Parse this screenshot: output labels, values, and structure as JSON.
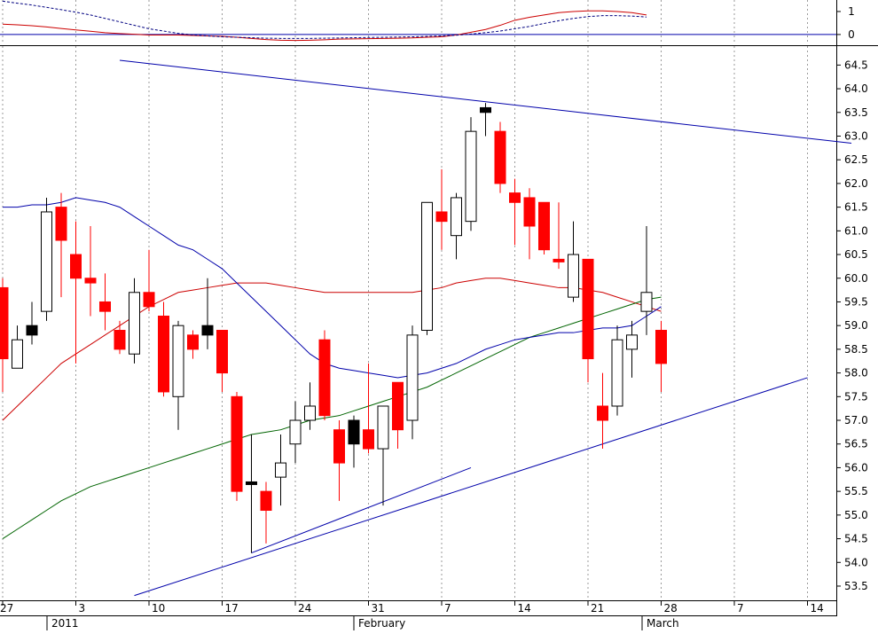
{
  "chart_data": [
    {
      "panel": "oscillator",
      "type": "line",
      "ylim": [
        -0.35,
        1.5
      ],
      "y_ticks": [
        "1",
        "0"
      ],
      "x": [
        "Dec 27",
        "Dec 28",
        "Dec 29",
        "Dec 30",
        "Dec 31",
        "Jan 3",
        "Jan 4",
        "Jan 5",
        "Jan 6",
        "Jan 7",
        "Jan 10",
        "Jan 11",
        "Jan 12",
        "Jan 13",
        "Jan 14",
        "Jan 17",
        "Jan 18",
        "Jan 19",
        "Jan 20",
        "Jan 21",
        "Jan 24",
        "Jan 25",
        "Jan 26",
        "Jan 27",
        "Jan 28",
        "Jan 31",
        "Feb 1",
        "Feb 2",
        "Feb 3",
        "Feb 4",
        "Feb 7",
        "Feb 8",
        "Feb 9",
        "Feb 10",
        "Feb 11",
        "Feb 14",
        "Feb 15",
        "Feb 16",
        "Feb 17",
        "Feb 18",
        "Feb 21",
        "Feb 22",
        "Feb 23",
        "Feb 24",
        "Feb 25",
        "Feb 28",
        "Mar 1",
        "Mar 2"
      ],
      "series": [
        {
          "style": "solid",
          "color": "#cc0000",
          "values": [
            0.45,
            0.42,
            0.38,
            0.33,
            0.26,
            0.2,
            0.14,
            0.08,
            0.04,
            0.01,
            -0.02,
            -0.02,
            -0.02,
            -0.04,
            -0.06,
            -0.08,
            -0.12,
            -0.17,
            -0.22,
            -0.25,
            -0.26,
            -0.25,
            -0.23,
            -0.2,
            -0.19,
            -0.18,
            -0.17,
            -0.16,
            -0.15,
            -0.12,
            -0.1,
            -0.02,
            0.1,
            0.22,
            0.4,
            0.62,
            0.75,
            0.85,
            0.95,
            1.0,
            1.03,
            1.03,
            1.0,
            0.95,
            0.85,
            0.7,
            0.5,
            0.3
          ]
        },
        {
          "style": "dotted",
          "color": "#000080",
          "values": [
            1.45,
            1.36,
            1.28,
            1.18,
            1.08,
            0.97,
            0.85,
            0.7,
            0.55,
            0.4,
            0.25,
            0.15,
            0.05,
            -0.02,
            -0.06,
            -0.1,
            -0.12,
            -0.14,
            -0.16,
            -0.17,
            -0.17,
            -0.17,
            -0.16,
            -0.15,
            -0.14,
            -0.13,
            -0.12,
            -0.11,
            -0.1,
            -0.08,
            -0.06,
            -0.03,
            0.02,
            0.08,
            0.15,
            0.25,
            0.35,
            0.48,
            0.6,
            0.7,
            0.78,
            0.82,
            0.82,
            0.8,
            0.76,
            0.7,
            0.6,
            0.48
          ]
        }
      ]
    },
    {
      "panel": "price",
      "type": "candlestick",
      "ylim": [
        53.2,
        64.9
      ],
      "y_ticks": [
        "53.5",
        "54.0",
        "54.5",
        "55.0",
        "55.5",
        "56.0",
        "56.5",
        "57.0",
        "57.5",
        "58.0",
        "58.5",
        "59.0",
        "59.5",
        "60.0",
        "60.5",
        "61.0",
        "61.5",
        "62.0",
        "62.5",
        "63.0",
        "63.5",
        "64.0",
        "64.5"
      ],
      "x_tick_labels": [
        "27",
        "3",
        "10",
        "17",
        "24",
        "31",
        "7",
        "14",
        "21",
        "28",
        "7",
        "14"
      ],
      "period_labels": [
        "2011",
        "February",
        "March"
      ],
      "candles": [
        {
          "d": "Dec 27",
          "o": 59.8,
          "h": 60.0,
          "l": 57.6,
          "c": 58.3,
          "color": "red"
        },
        {
          "d": "Dec 28",
          "o": 58.1,
          "h": 59.0,
          "l": 58.1,
          "c": 58.7,
          "color": "white"
        },
        {
          "d": "Dec 29",
          "o": 59.0,
          "h": 59.5,
          "l": 58.6,
          "c": 58.8,
          "color": "black"
        },
        {
          "d": "Dec 30",
          "o": 59.3,
          "h": 61.7,
          "l": 59.1,
          "c": 61.4,
          "color": "white"
        },
        {
          "d": "Dec 31",
          "o": 61.5,
          "h": 61.8,
          "l": 59.6,
          "c": 60.8,
          "color": "red"
        },
        {
          "d": "Jan 3",
          "o": 60.5,
          "h": 61.2,
          "l": 58.2,
          "c": 60.0,
          "color": "red"
        },
        {
          "d": "Jan 4",
          "o": 60.0,
          "h": 61.1,
          "l": 59.2,
          "c": 59.9,
          "color": "red"
        },
        {
          "d": "Jan 5",
          "o": 59.5,
          "h": 60.1,
          "l": 58.9,
          "c": 59.3,
          "color": "red"
        },
        {
          "d": "Jan 6",
          "o": 58.9,
          "h": 59.1,
          "l": 58.4,
          "c": 58.5,
          "color": "red"
        },
        {
          "d": "Jan 7",
          "o": 58.4,
          "h": 60.0,
          "l": 58.2,
          "c": 59.7,
          "color": "white"
        },
        {
          "d": "Jan 10",
          "o": 59.7,
          "h": 60.6,
          "l": 59.3,
          "c": 59.4,
          "color": "red"
        },
        {
          "d": "Jan 11",
          "o": 59.2,
          "h": 59.5,
          "l": 57.5,
          "c": 57.6,
          "color": "red"
        },
        {
          "d": "Jan 12",
          "o": 57.5,
          "h": 59.1,
          "l": 56.8,
          "c": 59.0,
          "color": "white"
        },
        {
          "d": "Jan 13",
          "o": 58.8,
          "h": 58.9,
          "l": 58.3,
          "c": 58.5,
          "color": "red"
        },
        {
          "d": "Jan 14",
          "o": 59.0,
          "h": 60.0,
          "l": 58.5,
          "c": 58.8,
          "color": "black"
        },
        {
          "d": "Jan 17",
          "o": 58.9,
          "h": 58.9,
          "l": 57.6,
          "c": 58.0,
          "color": "red"
        },
        {
          "d": "Jan 18",
          "o": 57.5,
          "h": 57.6,
          "l": 55.3,
          "c": 55.5,
          "color": "red"
        },
        {
          "d": "Jan 19",
          "o": 55.7,
          "h": 56.7,
          "l": 54.2,
          "c": 55.7,
          "color": "black"
        },
        {
          "d": "Jan 20",
          "o": 55.5,
          "h": 55.7,
          "l": 54.4,
          "c": 55.1,
          "color": "red"
        },
        {
          "d": "Jan 21",
          "o": 55.8,
          "h": 56.7,
          "l": 55.2,
          "c": 56.1,
          "color": "white"
        },
        {
          "d": "Jan 24",
          "o": 56.5,
          "h": 57.4,
          "l": 56.1,
          "c": 57.0,
          "color": "white"
        },
        {
          "d": "Jan 25",
          "o": 57.0,
          "h": 57.8,
          "l": 56.8,
          "c": 57.3,
          "color": "white"
        },
        {
          "d": "Jan 26",
          "o": 58.7,
          "h": 58.9,
          "l": 57.0,
          "c": 57.1,
          "color": "red"
        },
        {
          "d": "Jan 27",
          "o": 56.8,
          "h": 57.0,
          "l": 55.3,
          "c": 56.1,
          "color": "red"
        },
        {
          "d": "Jan 28",
          "o": 57.0,
          "h": 57.1,
          "l": 56.0,
          "c": 56.5,
          "color": "black"
        },
        {
          "d": "Jan 31",
          "o": 56.8,
          "h": 58.2,
          "l": 56.3,
          "c": 56.4,
          "color": "red"
        },
        {
          "d": "Feb 1",
          "o": 56.4,
          "h": 57.3,
          "l": 55.2,
          "c": 57.3,
          "color": "white"
        },
        {
          "d": "Feb 2",
          "o": 57.8,
          "h": 57.8,
          "l": 56.4,
          "c": 56.8,
          "color": "red"
        },
        {
          "d": "Feb 3",
          "o": 57.0,
          "h": 59.0,
          "l": 56.6,
          "c": 58.8,
          "color": "white"
        },
        {
          "d": "Feb 4",
          "o": 58.9,
          "h": 61.6,
          "l": 58.8,
          "c": 61.6,
          "color": "white"
        },
        {
          "d": "Feb 7",
          "o": 61.4,
          "h": 62.3,
          "l": 60.6,
          "c": 61.2,
          "color": "red"
        },
        {
          "d": "Feb 8",
          "o": 60.9,
          "h": 61.8,
          "l": 60.4,
          "c": 61.7,
          "color": "white"
        },
        {
          "d": "Feb 9",
          "o": 61.2,
          "h": 63.4,
          "l": 61.0,
          "c": 63.1,
          "color": "white"
        },
        {
          "d": "Feb 10",
          "o": 63.6,
          "h": 63.7,
          "l": 63.0,
          "c": 63.5,
          "color": "black"
        },
        {
          "d": "Feb 11",
          "o": 63.1,
          "h": 63.3,
          "l": 61.8,
          "c": 62.0,
          "color": "red"
        },
        {
          "d": "Feb 14",
          "o": 61.8,
          "h": 62.1,
          "l": 60.7,
          "c": 61.6,
          "color": "red"
        },
        {
          "d": "Feb 15",
          "o": 61.7,
          "h": 61.9,
          "l": 60.4,
          "c": 61.1,
          "color": "red"
        },
        {
          "d": "Feb 16",
          "o": 61.6,
          "h": 61.6,
          "l": 60.5,
          "c": 60.6,
          "color": "red"
        },
        {
          "d": "Feb 17",
          "o": 60.4,
          "h": 61.6,
          "l": 60.2,
          "c": 60.4,
          "color": "red"
        },
        {
          "d": "Feb 18",
          "o": 59.6,
          "h": 61.2,
          "l": 59.5,
          "c": 60.5,
          "color": "white"
        },
        {
          "d": "Feb 21",
          "o": 60.4,
          "h": 60.4,
          "l": 57.8,
          "c": 58.3,
          "color": "red"
        },
        {
          "d": "Feb 22",
          "o": 57.3,
          "h": 58.0,
          "l": 56.4,
          "c": 57.0,
          "color": "red"
        },
        {
          "d": "Feb 23",
          "o": 57.3,
          "h": 59.0,
          "l": 57.1,
          "c": 58.7,
          "color": "white"
        },
        {
          "d": "Feb 24",
          "o": 58.5,
          "h": 59.1,
          "l": 57.9,
          "c": 58.8,
          "color": "white"
        },
        {
          "d": "Feb 25",
          "o": 59.3,
          "h": 61.1,
          "l": 58.8,
          "c": 59.7,
          "color": "white"
        },
        {
          "d": "Feb 28",
          "o": 58.9,
          "h": 59.1,
          "l": 57.6,
          "c": 58.2,
          "color": "red"
        }
      ],
      "overlays": [
        {
          "name_shown": false,
          "color": "#cc0000",
          "values": [
            57.0,
            57.3,
            57.6,
            57.9,
            58.2,
            58.4,
            58.6,
            58.8,
            59.0,
            59.2,
            59.4,
            59.55,
            59.7,
            59.75,
            59.8,
            59.85,
            59.9,
            59.9,
            59.9,
            59.85,
            59.8,
            59.75,
            59.7,
            59.7,
            59.7,
            59.7,
            59.7,
            59.7,
            59.7,
            59.75,
            59.8,
            59.9,
            59.95,
            60.0,
            60.0,
            59.95,
            59.9,
            59.85,
            59.8,
            59.8,
            59.75,
            59.7,
            59.6,
            59.5,
            59.4,
            59.3
          ]
        },
        {
          "name_shown": false,
          "color": "#006400",
          "values": [
            54.5,
            54.7,
            54.9,
            55.1,
            55.3,
            55.45,
            55.6,
            55.7,
            55.8,
            55.9,
            56.0,
            56.1,
            56.2,
            56.3,
            56.4,
            56.5,
            56.6,
            56.7,
            56.75,
            56.8,
            56.9,
            57.0,
            57.05,
            57.1,
            57.2,
            57.3,
            57.4,
            57.5,
            57.6,
            57.7,
            57.85,
            58.0,
            58.15,
            58.3,
            58.45,
            58.6,
            58.75,
            58.85,
            58.95,
            59.05,
            59.15,
            59.25,
            59.35,
            59.45,
            59.55,
            59.6
          ]
        },
        {
          "name_shown": false,
          "color": "#0000aa",
          "values": [
            61.5,
            61.5,
            61.55,
            61.55,
            61.6,
            61.7,
            61.65,
            61.6,
            61.5,
            61.3,
            61.1,
            60.9,
            60.7,
            60.6,
            60.4,
            60.2,
            59.9,
            59.6,
            59.3,
            59.0,
            58.7,
            58.4,
            58.2,
            58.1,
            58.05,
            58.0,
            57.95,
            57.9,
            57.95,
            58.0,
            58.1,
            58.2,
            58.35,
            58.5,
            58.6,
            58.7,
            58.75,
            58.8,
            58.85,
            58.85,
            58.9,
            58.95,
            58.95,
            59.0,
            59.2,
            59.4
          ]
        }
      ],
      "trendlines": [
        {
          "color": "#0000aa",
          "from": {
            "d": "Jan 6",
            "y": 64.6
          },
          "to": {
            "d": "Mar 17",
            "y": 62.85
          }
        },
        {
          "color": "#0000aa",
          "from": {
            "d": "Jan 7",
            "y": 53.3
          },
          "to": {
            "d": "Mar 14",
            "y": 57.9
          }
        },
        {
          "color": "#0000aa",
          "from": {
            "d": "Jan 19",
            "y": 54.2
          },
          "to": {
            "d": "Feb 9",
            "y": 56.0
          }
        }
      ]
    }
  ]
}
